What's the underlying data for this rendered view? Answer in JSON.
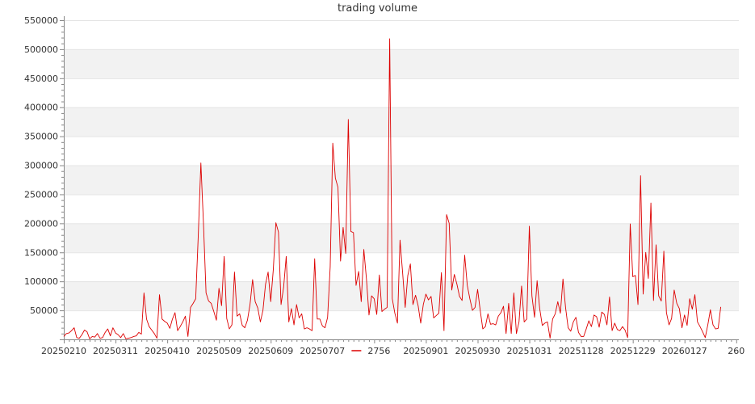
{
  "chart_data": {
    "type": "line",
    "title": "trading volume",
    "xlabel": "",
    "ylabel": "",
    "ylim": [
      0,
      550000
    ],
    "y_ticks": [
      50000,
      100000,
      150000,
      200000,
      250000,
      300000,
      350000,
      400000,
      450000,
      500000,
      550000
    ],
    "y_tick_labels": [
      "50000",
      "100000",
      "150000",
      "200000",
      "250000",
      "300000",
      "350000",
      "400000",
      "450000",
      "500000",
      "550000"
    ],
    "x_ticks": [
      {
        "index": 0,
        "label": "20250210"
      },
      {
        "index": 20,
        "label": "20250311"
      },
      {
        "index": 40,
        "label": "20250410"
      },
      {
        "index": 60,
        "label": "20250509"
      },
      {
        "index": 80,
        "label": "20250609"
      },
      {
        "index": 100,
        "label": "20250707"
      },
      {
        "index": 140,
        "label": "20250901"
      },
      {
        "index": 160,
        "label": "20250930"
      },
      {
        "index": 180,
        "label": "20251031"
      },
      {
        "index": 200,
        "label": "20251128"
      },
      {
        "index": 220,
        "label": "20251229"
      },
      {
        "index": 240,
        "label": "20260127"
      },
      {
        "index": 260,
        "label": "260"
      }
    ],
    "x_count": 262,
    "grid": "horizontal alternating bands",
    "legend": {
      "position": "bottom",
      "entries": [
        "2756"
      ]
    },
    "colors": {
      "line": "#dd0000",
      "band": "#f2f2f2",
      "axis": "#888888"
    },
    "series": [
      {
        "name": "2756",
        "values": [
          5000,
          10000,
          11000,
          15000,
          20000,
          3000,
          2000,
          8000,
          16000,
          13000,
          1000,
          5000,
          4000,
          10000,
          2000,
          3000,
          12000,
          18000,
          6000,
          20000,
          11000,
          8000,
          3000,
          10000,
          1000,
          2000,
          3000,
          5000,
          6000,
          12000,
          9000,
          80000,
          35000,
          22000,
          16000,
          10000,
          2000,
          77000,
          35000,
          31000,
          28000,
          19000,
          35000,
          46000,
          15000,
          22000,
          30000,
          40000,
          5000,
          55000,
          62000,
          70000,
          180000,
          304000,
          200000,
          80000,
          66000,
          62000,
          48000,
          33000,
          88000,
          58000,
          143000,
          36000,
          18000,
          25000,
          116000,
          40000,
          44000,
          24000,
          20000,
          33000,
          60000,
          103000,
          65000,
          54000,
          30000,
          50000,
          95000,
          116000,
          65000,
          120000,
          201000,
          185000,
          60000,
          90000,
          143000,
          30000,
          53000,
          25000,
          60000,
          37000,
          44000,
          18000,
          20000,
          18000,
          15000,
          139000,
          35000,
          35000,
          23000,
          20000,
          38000,
          125000,
          338000,
          278000,
          262000,
          135000,
          193000,
          148000,
          379000,
          186000,
          184000,
          93000,
          117000,
          65000,
          155000,
          105000,
          42000,
          75000,
          70000,
          43000,
          111000,
          48000,
          52000,
          55000,
          518000,
          70000,
          45000,
          28000,
          171000,
          115000,
          55000,
          110000,
          130000,
          60000,
          76000,
          58000,
          28000,
          60000,
          78000,
          68000,
          74000,
          37000,
          41000,
          45000,
          115000,
          15000,
          215000,
          200000,
          85000,
          112000,
          95000,
          74000,
          67000,
          145000,
          93000,
          70000,
          50000,
          55000,
          86000,
          50000,
          18000,
          22000,
          44000,
          26000,
          27000,
          25000,
          40000,
          46000,
          57000,
          10000,
          62000,
          10000,
          80000,
          10000,
          30000,
          92000,
          30000,
          35000,
          195000,
          75000,
          38000,
          101000,
          53000,
          24000,
          28000,
          30000,
          2000,
          35000,
          44000,
          65000,
          45000,
          104000,
          55000,
          20000,
          14000,
          30000,
          38000,
          12000,
          5000,
          5000,
          18000,
          32000,
          22000,
          42000,
          39000,
          21000,
          47000,
          43000,
          25000,
          73000,
          15000,
          28000,
          17000,
          15000,
          22000,
          16000,
          3000,
          199000,
          108000,
          110000,
          60000,
          282000,
          78000,
          150000,
          105000,
          235000,
          67000,
          163000,
          75000,
          66000,
          152000,
          46000,
          25000,
          36000,
          85000,
          62000,
          53000,
          20000,
          42000,
          24000,
          70000,
          52000,
          77000,
          30000,
          22000,
          13000,
          3000,
          25000,
          51000,
          25000,
          18000,
          19000,
          56000
        ]
      }
    ]
  }
}
